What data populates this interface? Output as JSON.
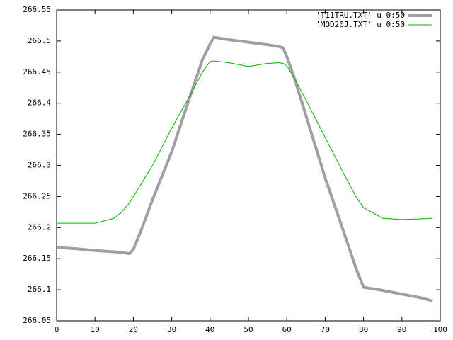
{
  "chart_data": {
    "type": "line",
    "x": [
      0,
      5,
      10,
      15,
      17,
      19,
      20,
      22,
      25,
      30,
      35,
      38,
      40,
      41,
      45,
      50,
      55,
      58,
      59,
      60,
      62,
      65,
      70,
      75,
      78,
      80,
      85,
      90,
      95,
      98
    ],
    "series": [
      {
        "name": "'T11TRU.TXT' u 0:50",
        "color": "#a0a0a4",
        "width": 4,
        "values": [
          266.168,
          266.166,
          266.163,
          266.161,
          266.16,
          266.158,
          266.165,
          266.195,
          266.245,
          266.322,
          266.415,
          266.47,
          266.495,
          266.506,
          266.502,
          266.498,
          266.494,
          266.491,
          266.489,
          266.475,
          266.44,
          266.38,
          266.28,
          266.19,
          266.135,
          266.104,
          266.099,
          266.093,
          266.087,
          266.082
        ]
      },
      {
        "name": "'MOD20J.TXT' u 0:50",
        "color": "#00b000",
        "width": 1,
        "values": [
          266.207,
          266.207,
          266.207,
          266.215,
          266.225,
          266.24,
          266.25,
          266.27,
          266.3,
          266.36,
          266.415,
          266.45,
          266.467,
          266.468,
          266.465,
          266.459,
          266.464,
          266.465,
          266.464,
          266.46,
          266.44,
          266.405,
          266.345,
          266.285,
          266.25,
          266.232,
          266.215,
          266.213,
          266.214,
          266.215
        ]
      }
    ],
    "xlim": [
      0,
      100
    ],
    "xticks": [
      0,
      10,
      20,
      30,
      40,
      50,
      60,
      70,
      80,
      90,
      100
    ],
    "ylim": [
      266.05,
      266.55
    ],
    "yticks": [
      266.05,
      266.1,
      266.15,
      266.2,
      266.25,
      266.3,
      266.35,
      266.4,
      266.45,
      266.5,
      266.55
    ],
    "legend": "top-right",
    "grid": false
  }
}
